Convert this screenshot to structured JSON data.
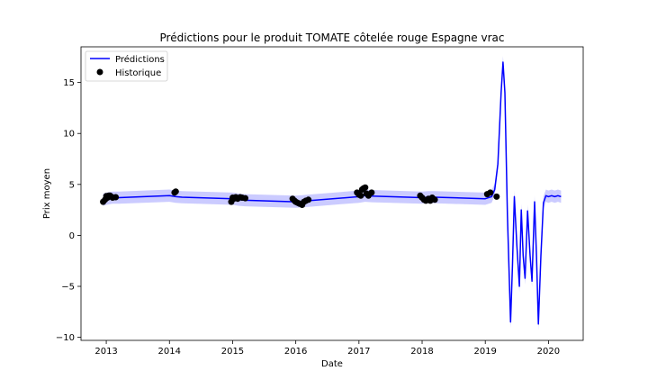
{
  "chart_data": {
    "type": "line",
    "title": "Prédictions pour le produit TOMATE côtelée rouge Espagne vrac",
    "xlabel": "Date",
    "ylabel": "Prix moyen",
    "xlim": [
      2012.6,
      2020.55
    ],
    "ylim": [
      -10.3,
      18.5
    ],
    "x_ticks": [
      2013,
      2014,
      2015,
      2016,
      2017,
      2018,
      2019,
      2020
    ],
    "x_tick_labels": [
      "2013",
      "2014",
      "2015",
      "2016",
      "2017",
      "2018",
      "2019",
      "2020"
    ],
    "y_ticks": [
      -10,
      -5,
      0,
      5,
      10,
      15
    ],
    "y_tick_labels": [
      "−10",
      "−5",
      "0",
      "5",
      "10",
      "15"
    ],
    "grid": false,
    "legend": {
      "position": "top-left"
    },
    "colors": {
      "prediction_line": "#0000ff",
      "interval_fill": "#c8c8ff",
      "history_points": "#000000"
    },
    "series": [
      {
        "name": "Prédictions",
        "kind": "line",
        "x": [
          2012.95,
          2013.0,
          2013.1,
          2013.2,
          2014.0,
          2014.1,
          2014.2,
          2015.0,
          2015.1,
          2015.2,
          2016.0,
          2016.1,
          2016.2,
          2017.0,
          2017.1,
          2017.2,
          2018.0,
          2018.1,
          2018.2,
          2019.0,
          2019.1,
          2019.15,
          2019.2,
          2019.25,
          2019.28,
          2019.31,
          2019.35,
          2019.4,
          2019.43,
          2019.46,
          2019.5,
          2019.54,
          2019.57,
          2019.6,
          2019.63,
          2019.67,
          2019.71,
          2019.74,
          2019.78,
          2019.81,
          2019.84,
          2019.88,
          2019.92,
          2019.96,
          2020.0,
          2020.05,
          2020.1,
          2020.15,
          2020.2
        ],
        "y": [
          3.5,
          3.6,
          3.7,
          3.7,
          3.9,
          3.8,
          3.75,
          3.6,
          3.5,
          3.45,
          3.3,
          3.35,
          3.4,
          3.8,
          3.9,
          3.85,
          3.7,
          3.75,
          3.75,
          3.6,
          3.8,
          4.5,
          7.0,
          14.0,
          17.0,
          14.0,
          2.0,
          -8.5,
          -3.0,
          3.8,
          -1.0,
          -5.0,
          2.5,
          -2.0,
          -4.2,
          2.4,
          -2.0,
          -4.5,
          3.3,
          -2.0,
          -8.7,
          -2.0,
          3.2,
          3.9,
          3.8,
          3.9,
          3.8,
          3.9,
          3.8
        ],
        "lower": [
          2.9,
          3.0,
          3.1,
          3.1,
          3.3,
          3.2,
          3.15,
          3.0,
          2.9,
          2.85,
          2.7,
          2.75,
          2.8,
          3.2,
          3.3,
          3.25,
          3.1,
          3.15,
          3.15,
          3.0,
          3.2,
          3.9,
          6.4,
          13.4,
          16.4,
          13.4,
          1.4,
          -9.1,
          -3.6,
          3.2,
          -1.6,
          -5.6,
          1.9,
          -2.6,
          -4.8,
          1.8,
          -2.6,
          -5.1,
          2.7,
          -2.6,
          -9.3,
          -2.6,
          2.6,
          3.3,
          3.2,
          3.3,
          3.2,
          3.3,
          3.2
        ],
        "upper": [
          4.1,
          4.2,
          4.3,
          4.3,
          4.5,
          4.4,
          4.35,
          4.2,
          4.1,
          4.05,
          3.9,
          3.95,
          4.0,
          4.4,
          4.5,
          4.45,
          4.3,
          4.35,
          4.35,
          4.2,
          4.4,
          5.1,
          7.6,
          14.6,
          17.6,
          14.6,
          2.6,
          -7.9,
          -2.4,
          4.4,
          -0.4,
          -4.4,
          3.1,
          -1.4,
          -3.6,
          3.0,
          -1.4,
          -3.9,
          3.9,
          -1.4,
          -8.1,
          -1.4,
          3.8,
          4.5,
          4.4,
          4.5,
          4.4,
          4.5,
          4.4
        ]
      },
      {
        "name": "Historique",
        "kind": "scatter",
        "points": [
          [
            2012.95,
            3.3
          ],
          [
            2012.98,
            3.5
          ],
          [
            2013.0,
            3.85
          ],
          [
            2013.02,
            3.7
          ],
          [
            2013.04,
            3.9
          ],
          [
            2013.06,
            3.9
          ],
          [
            2013.08,
            3.8
          ],
          [
            2013.1,
            3.7
          ],
          [
            2013.15,
            3.75
          ],
          [
            2014.08,
            4.2
          ],
          [
            2014.1,
            4.3
          ],
          [
            2014.98,
            3.3
          ],
          [
            2015.0,
            3.7
          ],
          [
            2015.02,
            3.6
          ],
          [
            2015.05,
            3.75
          ],
          [
            2015.08,
            3.6
          ],
          [
            2015.12,
            3.75
          ],
          [
            2015.15,
            3.7
          ],
          [
            2015.2,
            3.65
          ],
          [
            2015.95,
            3.6
          ],
          [
            2015.98,
            3.4
          ],
          [
            2016.0,
            3.3
          ],
          [
            2016.03,
            3.2
          ],
          [
            2016.06,
            3.1
          ],
          [
            2016.1,
            3.0
          ],
          [
            2016.13,
            3.3
          ],
          [
            2016.16,
            3.4
          ],
          [
            2016.2,
            3.5
          ],
          [
            2016.97,
            4.2
          ],
          [
            2017.0,
            4.0
          ],
          [
            2017.03,
            3.9
          ],
          [
            2017.05,
            4.5
          ],
          [
            2017.07,
            4.6
          ],
          [
            2017.1,
            4.7
          ],
          [
            2017.12,
            4.1
          ],
          [
            2017.15,
            3.9
          ],
          [
            2017.2,
            4.2
          ],
          [
            2017.97,
            3.9
          ],
          [
            2018.0,
            3.7
          ],
          [
            2018.03,
            3.5
          ],
          [
            2018.06,
            3.4
          ],
          [
            2018.1,
            3.6
          ],
          [
            2018.13,
            3.4
          ],
          [
            2018.16,
            3.7
          ],
          [
            2018.2,
            3.5
          ],
          [
            2019.03,
            4.05
          ],
          [
            2019.08,
            4.2
          ],
          [
            2019.18,
            3.8
          ]
        ]
      }
    ]
  }
}
